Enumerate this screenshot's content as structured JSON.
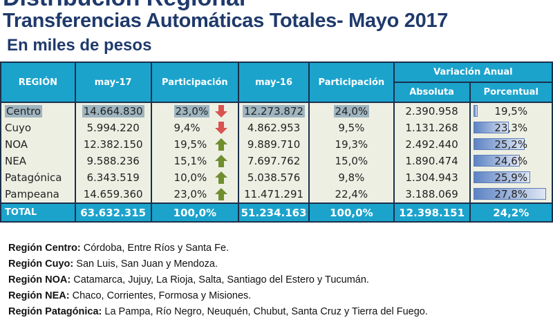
{
  "title": "Distribución Regional",
  "subtitle": "Transferencias Automáticas Totales- Mayo 2017",
  "unit": "En miles de pesos",
  "colors": {
    "header": "#1ba3cc",
    "title": "#1f3a6b",
    "up": "#6f8f2e",
    "down": "#d9534f",
    "body": "#eeefe3"
  },
  "headers": {
    "region": "REGIÓN",
    "may17": "may-17",
    "part17": "Participación",
    "may16": "may-16",
    "part16": "Participación",
    "var": "Variación Anual",
    "abs": "Absoluta",
    "pct": "Porcentual"
  },
  "rows": [
    {
      "region": "Centro",
      "may17": "14.664.830",
      "part17": "23,0%",
      "trend": "down",
      "may16": "12.273.872",
      "part16": "24,0%",
      "abs": "2.390.958",
      "pct": "19,5%",
      "pct_value": 19.5
    },
    {
      "region": "Cuyo",
      "may17": "5.994.220",
      "part17": "9,4%",
      "trend": "down",
      "may16": "4.862.953",
      "part16": "9,5%",
      "abs": "1.131.268",
      "pct": "23,3%",
      "pct_value": 23.3
    },
    {
      "region": "NOA",
      "may17": "12.382.150",
      "part17": "19,5%",
      "trend": "up",
      "may16": "9.889.710",
      "part16": "19,3%",
      "abs": "2.492.440",
      "pct": "25,2%",
      "pct_value": 25.2
    },
    {
      "region": "NEA",
      "may17": "9.588.236",
      "part17": "15,1%",
      "trend": "up",
      "may16": "7.697.762",
      "part16": "15,0%",
      "abs": "1.890.474",
      "pct": "24,6%",
      "pct_value": 24.6
    },
    {
      "region": "Patagónica",
      "may17": "6.343.519",
      "part17": "10,0%",
      "trend": "up",
      "may16": "5.038.576",
      "part16": "9,8%",
      "abs": "1.304.943",
      "pct": "25,9%",
      "pct_value": 25.9
    },
    {
      "region": "Pampeana",
      "may17": "14.659.360",
      "part17": "23,0%",
      "trend": "up",
      "may16": "11.471.291",
      "part16": "22,4%",
      "abs": "3.188.069",
      "pct": "27,8%",
      "pct_value": 27.8
    }
  ],
  "total": {
    "region": "TOTAL",
    "may17": "63.632.315",
    "part17": "100,0%",
    "may16": "51.234.163",
    "part16": "100,0%",
    "abs": "12.398.151",
    "pct": "24,2%"
  },
  "notes": [
    {
      "label": "Región Centro:",
      "text": " Córdoba, Entre Ríos y Santa Fe."
    },
    {
      "label": "Región Cuyo:",
      "text": " San Luis, San Juan y Mendoza."
    },
    {
      "label": "Región NOA:",
      "text": " Catamarca, Jujuy, La Rioja, Salta, Santiago del Estero y Tucumán."
    },
    {
      "label": "Región NEA:",
      "text": " Chaco, Corrientes, Formosa y Misiones."
    },
    {
      "label": "Región Patagónica:",
      "text": " La Pampa, Río Negro, Neuquén, Chubut, Santa Cruz y Tierra del Fuego."
    }
  ]
}
